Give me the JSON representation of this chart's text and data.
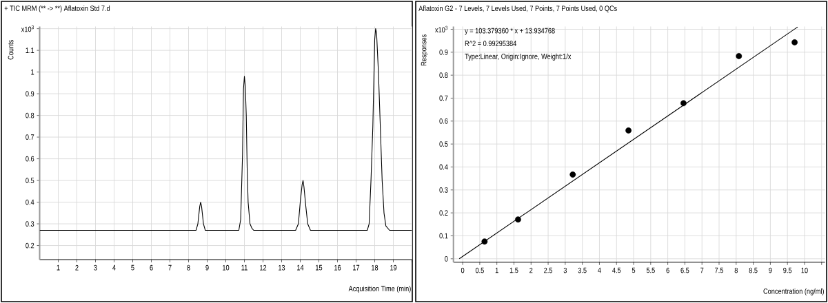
{
  "chart_data": [
    {
      "type": "line",
      "title": "+ TIC MRM (** -> **) Aflatoxin Std 7.d",
      "xlabel": "Acquisition Time (min)",
      "ylabel": "Counts",
      "x": [
        0,
        8.4,
        8.5,
        8.6,
        8.65,
        8.7,
        8.8,
        8.9,
        10.7,
        10.8,
        10.9,
        10.95,
        11.0,
        11.05,
        11.1,
        11.15,
        11.2,
        11.3,
        11.4,
        11.5,
        13.75,
        13.9,
        14.0,
        14.1,
        14.15,
        14.2,
        14.3,
        14.4,
        14.55,
        17.6,
        17.7,
        17.8,
        17.9,
        18.0,
        18.05,
        18.1,
        18.2,
        18.3,
        18.4,
        18.5,
        18.6,
        18.8,
        20
      ],
      "series": [
        {
          "color": "#000000",
          "values": [
            0.27,
            0.27,
            0.3,
            0.38,
            0.4,
            0.38,
            0.3,
            0.27,
            0.27,
            0.32,
            0.62,
            0.92,
            0.98,
            0.93,
            0.8,
            0.55,
            0.4,
            0.3,
            0.28,
            0.27,
            0.27,
            0.3,
            0.4,
            0.48,
            0.5,
            0.47,
            0.38,
            0.3,
            0.27,
            0.27,
            0.3,
            0.5,
            0.75,
            1.15,
            1.2,
            1.18,
            1.0,
            0.75,
            0.5,
            0.35,
            0.29,
            0.27,
            0.27
          ]
        }
      ],
      "xlim": [
        0,
        20
      ],
      "ylim": [
        0.135,
        1.21
      ],
      "xticks": [
        1,
        2,
        3,
        4,
        5,
        6,
        7,
        8,
        9,
        10,
        11,
        12,
        13,
        14,
        15,
        16,
        17,
        18,
        19,
        {
          "value": 20,
          "label": null
        }
      ],
      "yticks": [
        0.2,
        0.3,
        0.4,
        0.5,
        0.6,
        0.7,
        0.8,
        0.9,
        1,
        1.1,
        {
          "value": 1.2,
          "label": "x10$^{3}$"
        }
      ],
      "grid": true
    },
    {
      "type": "scatter",
      "title": "Aflatoxin G2 - 7 Levels, 7 Levels Used, 7 Points, 7 Points Used, 0 QCs",
      "xlabel": "Concentration (ng/ml)",
      "ylabel": "Responses",
      "annotations": [
        "y = 103.379360 * x  + 13.934768",
        "R^2 = 0.99295384",
        "Type:Linear, Origin:Ignore, Weight:1/x"
      ],
      "series": [
        {
          "type": "scatter",
          "marker": "circle",
          "color": "#000000",
          "x": [
            0.64,
            1.62,
            3.22,
            4.85,
            6.46,
            8.08,
            9.71
          ],
          "values": [
            0.075,
            0.171,
            0.367,
            0.559,
            0.678,
            0.883,
            0.943
          ]
        },
        {
          "type": "line",
          "marker": "none",
          "color": "#000000",
          "x": [
            -0.1,
            9.8
          ],
          "values": [
            0.0,
            1.01
          ]
        }
      ],
      "xlim": [
        -0.27,
        10.6
      ],
      "ylim": [
        -0.015,
        1.012
      ],
      "xticks": [
        0,
        0.5,
        1,
        1.5,
        2,
        2.5,
        3,
        3.5,
        4,
        4.5,
        5,
        5.5,
        6,
        6.5,
        7,
        7.5,
        8,
        8.5,
        9,
        9.5,
        10,
        {
          "value": 10.5,
          "label": null
        }
      ],
      "yticks": [
        0,
        0.1,
        0.2,
        0.3,
        0.4,
        0.5,
        0.6,
        0.7,
        0.8,
        0.9,
        {
          "value": 1.0,
          "label": "x10$^{3}$"
        }
      ],
      "grid": true
    }
  ]
}
